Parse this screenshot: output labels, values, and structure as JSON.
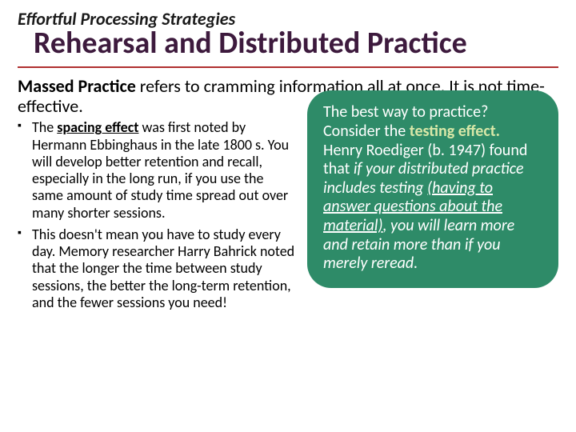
{
  "overline": "Effortful Processing Strategies",
  "title": "Rehearsal and Distributed Practice",
  "intro_bold": "Massed Practice",
  "intro_rest": " refers to cramming information all at once. It is not time-effective.",
  "bullet1_pre": "The ",
  "bullet1_term": "spacing effect",
  "bullet1_post": " was first noted by Hermann Ebbinghaus in the late 1800 s. You will develop better retention and recall, especially in the long run, if you use the same amount of study time spread out over many shorter sessions.",
  "bullet2": "This doesn't mean you have to study every day. Memory researcher Harry Bahrick noted that the longer the time between study sessions, the better the long-term retention, and the fewer sessions you need!",
  "callout_p1": "The best way to practice? Consider the ",
  "callout_term": "testing effect.",
  "callout_p2": " Henry Roediger (b. 1947) found that ",
  "callout_ital_pre": "if your distributed practice includes testing ",
  "callout_ital_ul": "(having to answer questions about the material)",
  "callout_ital_post": ", you will learn more and retain more than if you merely reread.",
  "colors": {
    "title": "#3d1a3d",
    "rule": "#b03030",
    "callout_bg": "#2e8b68",
    "callout_text": "#ffffff",
    "testing_effect": "#d9e8a8"
  }
}
